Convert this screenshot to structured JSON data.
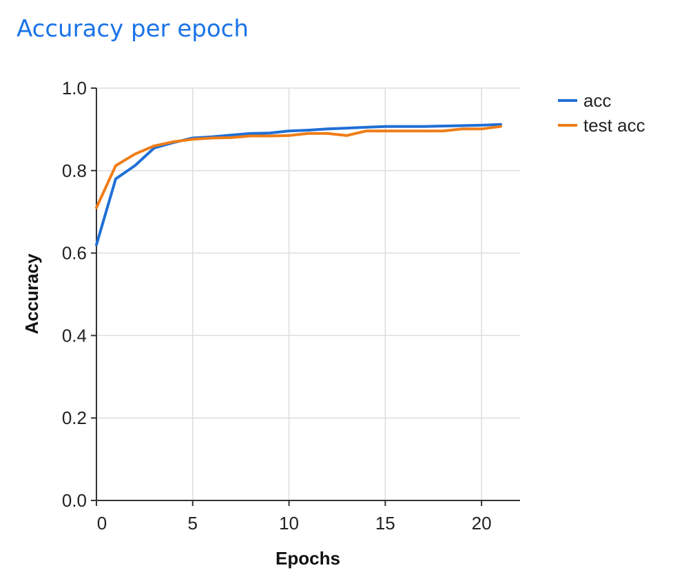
{
  "page": {
    "title": "Accuracy per epoch"
  },
  "colors": {
    "title": "#1a73e8",
    "grid": "#dddddd",
    "axis": "#333333"
  },
  "chart_data": {
    "type": "line",
    "title": "Accuracy per epoch",
    "xlabel": "Epochs",
    "ylabel": "Accuracy",
    "xlim": [
      0,
      22
    ],
    "ylim": [
      0,
      1
    ],
    "x_ticks": [
      0,
      5,
      10,
      15,
      20
    ],
    "x_tick_labels": [
      "0",
      "5",
      "10",
      "15",
      "20"
    ],
    "y_ticks": [
      0,
      0.2,
      0.4,
      0.6,
      0.8,
      1.0
    ],
    "y_tick_labels": [
      "0.0",
      "0.2",
      "0.4",
      "0.6",
      "0.8",
      "1.0"
    ],
    "x_grid": [
      0,
      5,
      10,
      15,
      20
    ],
    "y_grid": [
      0.2,
      0.4,
      0.6,
      0.8,
      1.0
    ],
    "grid": true,
    "legend_position": "top-right",
    "x": [
      0,
      1,
      2,
      3,
      4,
      5,
      6,
      7,
      8,
      9,
      10,
      11,
      12,
      13,
      14,
      15,
      16,
      17,
      18,
      19,
      20,
      21
    ],
    "series": [
      {
        "name": "acc",
        "color": "#1f6fd6",
        "values": [
          0.62,
          0.78,
          0.812,
          0.855,
          0.868,
          0.879,
          0.882,
          0.886,
          0.89,
          0.891,
          0.896,
          0.898,
          0.901,
          0.903,
          0.905,
          0.907,
          0.907,
          0.907,
          0.908,
          0.909,
          0.91,
          0.912
        ]
      },
      {
        "name": "test acc",
        "color": "#ef7d17",
        "values": [
          0.71,
          0.812,
          0.84,
          0.86,
          0.87,
          0.876,
          0.879,
          0.88,
          0.884,
          0.884,
          0.885,
          0.89,
          0.89,
          0.885,
          0.896,
          0.896,
          0.896,
          0.896,
          0.896,
          0.901,
          0.901,
          0.907
        ]
      }
    ]
  }
}
